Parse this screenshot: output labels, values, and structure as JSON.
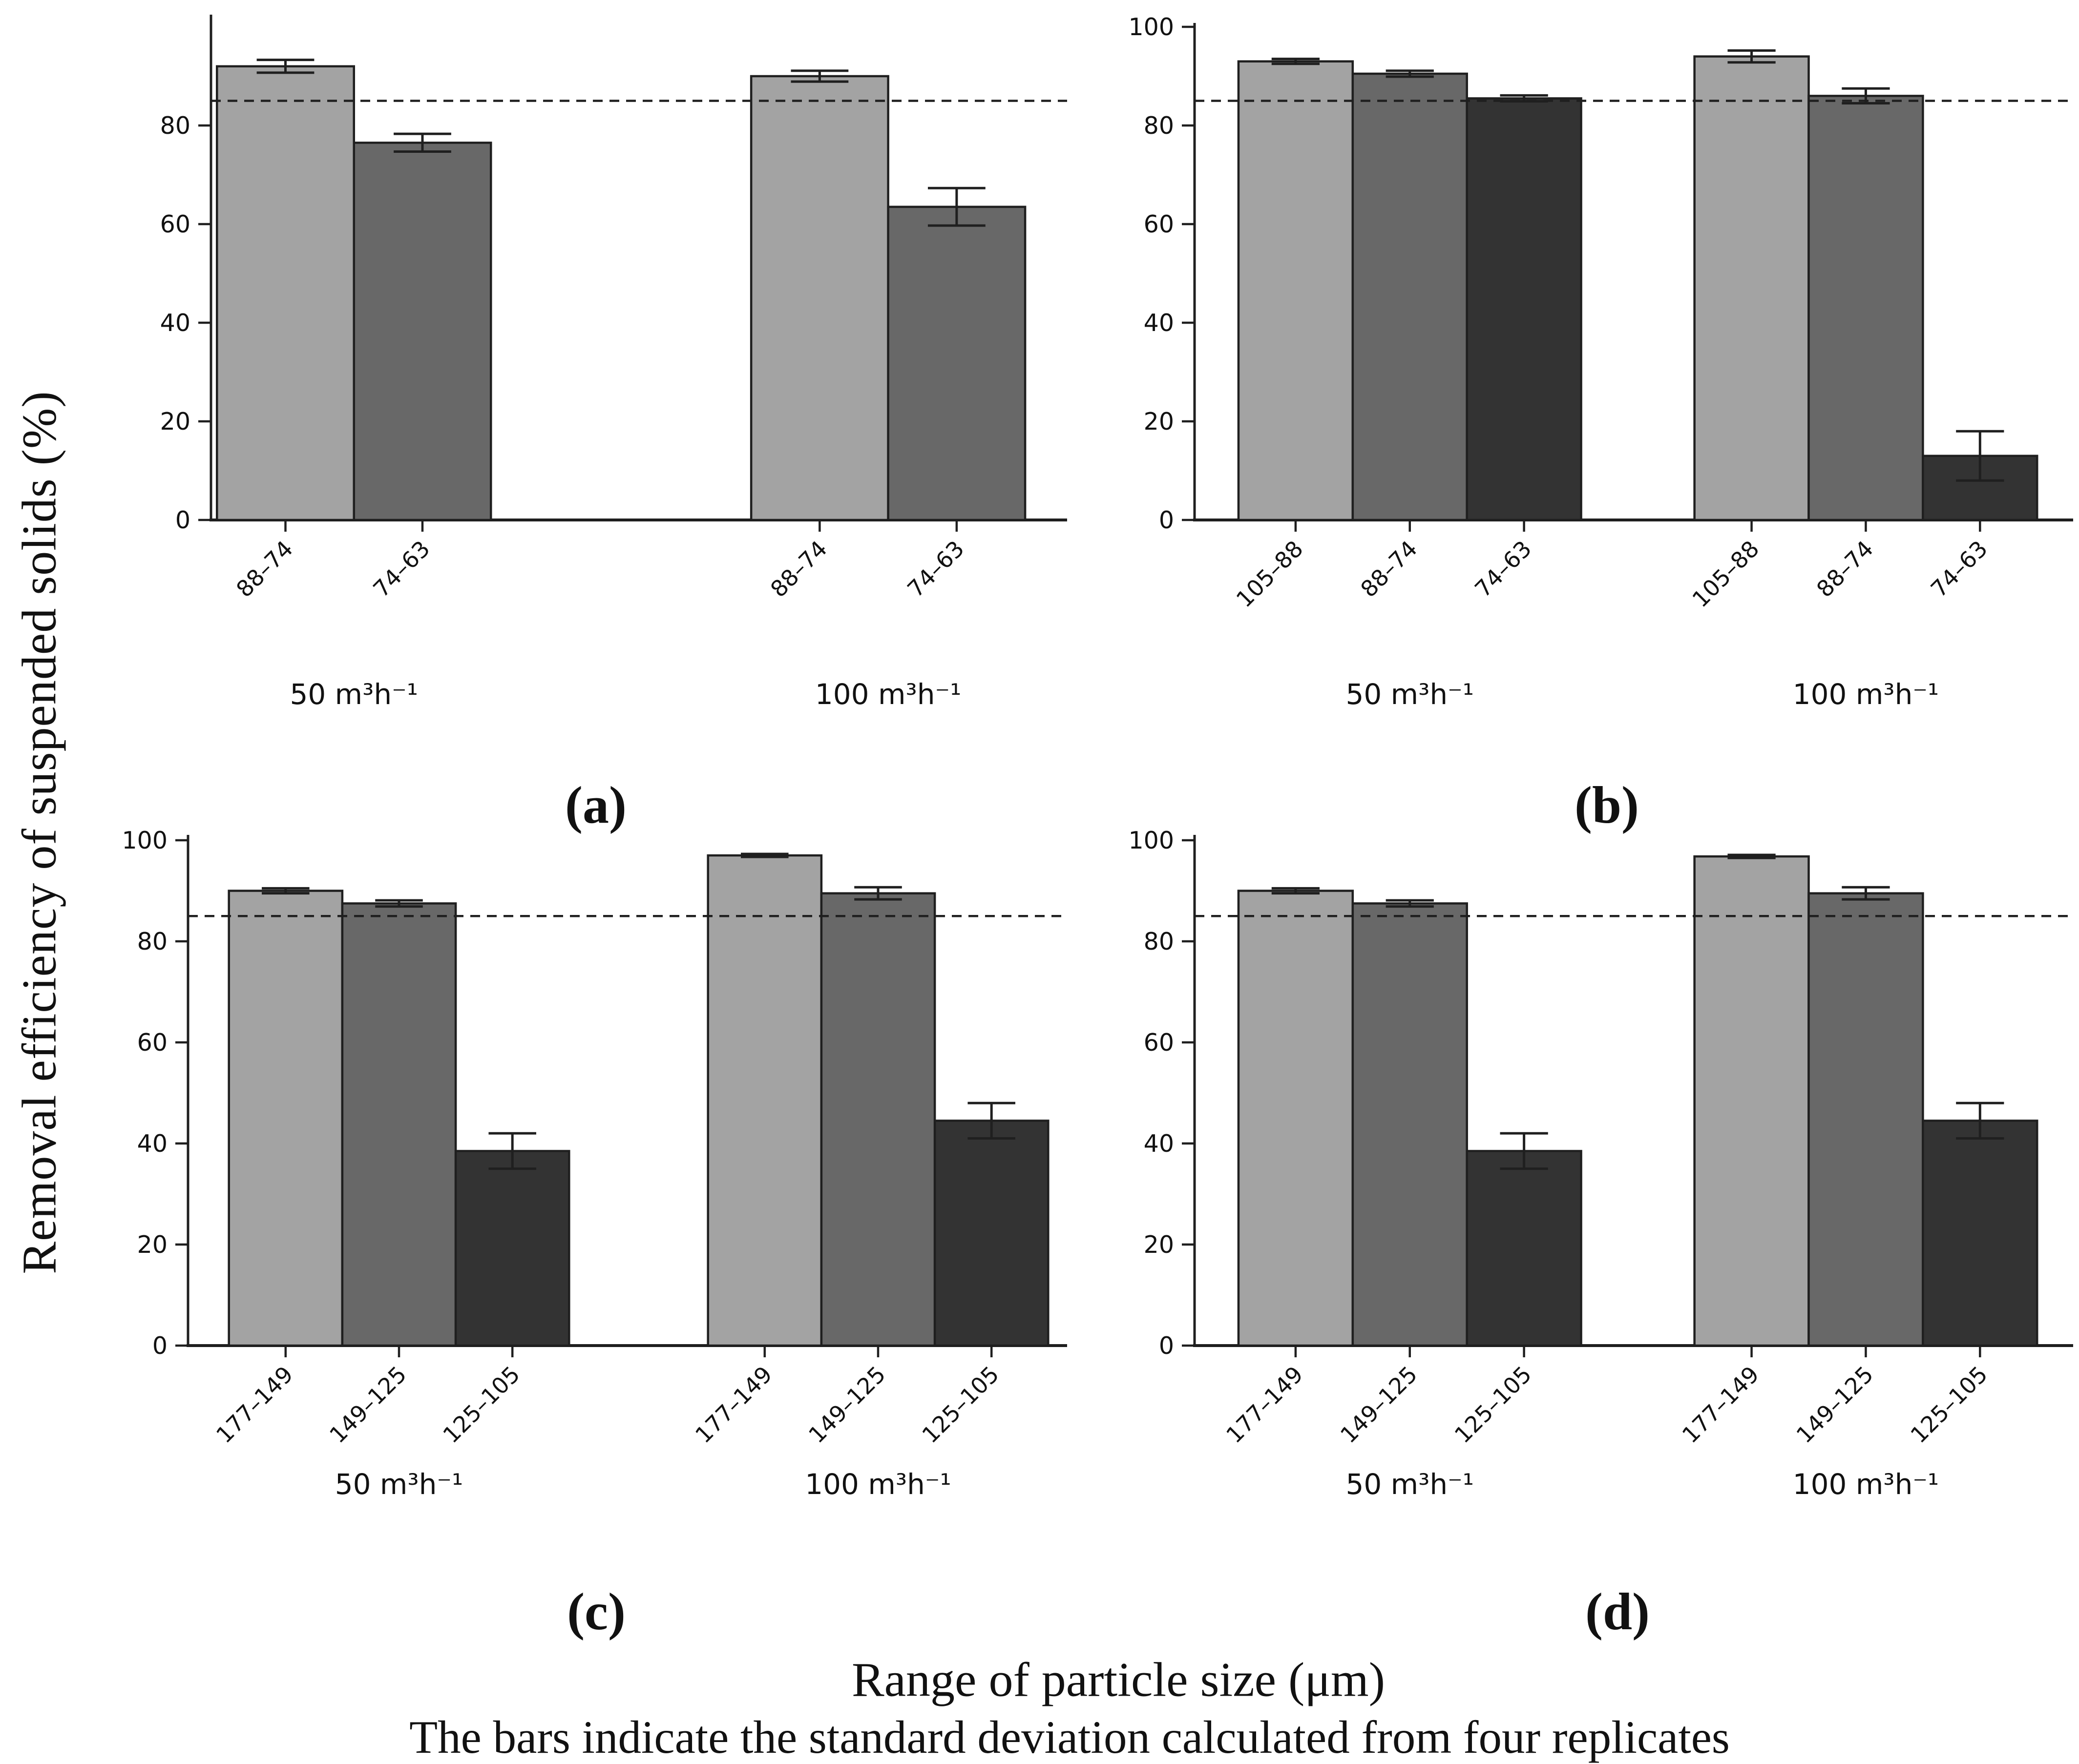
{
  "figure": {
    "y_axis_label": "Removal efficiency of suspended solids (%)",
    "x_axis_label": "Range of particle size (μm)",
    "footnote": "The bars indicate the standard deviation calculated from four replicates",
    "reference_line_value": 85,
    "bar_colors": [
      "#a3a3a3",
      "#686868",
      "#333333"
    ],
    "edge_color": "#1f1f1f",
    "background_color": "#ffffff"
  },
  "chart_data": [
    {
      "id": "a",
      "panel_label": "(a)",
      "type": "bar",
      "ylim": [
        0,
        100
      ],
      "yticks": [
        0,
        20,
        40,
        60,
        80
      ],
      "ref_line": 85,
      "grid": false,
      "groups": [
        {
          "label": "50 m³h⁻¹",
          "bars": [
            {
              "category": "88–74",
              "value": 92,
              "error": 1.3
            },
            {
              "category": "74–63",
              "value": 76.5,
              "error": 1.8
            }
          ]
        },
        {
          "label": "100 m³h⁻¹",
          "bars": [
            {
              "category": "88–74",
              "value": 90,
              "error": 1.1
            },
            {
              "category": "74–63",
              "value": 63.5,
              "error": 3.8
            }
          ]
        }
      ]
    },
    {
      "id": "b",
      "panel_label": "(b)",
      "type": "bar",
      "ylim": [
        0,
        100
      ],
      "yticks": [
        0,
        20,
        40,
        60,
        80,
        100
      ],
      "ref_line": 85,
      "grid": false,
      "groups": [
        {
          "label": "50 m³h⁻¹",
          "bars": [
            {
              "category": "105–88",
              "value": 93,
              "error": 0.5
            },
            {
              "category": "88–74",
              "value": 90.5,
              "error": 0.6
            },
            {
              "category": "74–63",
              "value": 85.5,
              "error": 0.6
            }
          ]
        },
        {
          "label": "100 m³h⁻¹",
          "bars": [
            {
              "category": "105–88",
              "value": 94,
              "error": 1.2
            },
            {
              "category": "88–74",
              "value": 86,
              "error": 1.5
            },
            {
              "category": "74–63",
              "value": 13,
              "error": 5
            }
          ]
        }
      ]
    },
    {
      "id": "c",
      "panel_label": "(c)",
      "type": "bar",
      "ylim": [
        0,
        100
      ],
      "yticks": [
        0,
        20,
        40,
        60,
        80,
        100
      ],
      "ref_line": 85,
      "grid": false,
      "groups": [
        {
          "label": "50 m³h⁻¹",
          "bars": [
            {
              "category": "177–149",
              "value": 90,
              "error": 0.5
            },
            {
              "category": "149–125",
              "value": 87.5,
              "error": 0.6
            },
            {
              "category": "125–105",
              "value": 38.5,
              "error": 3.5
            }
          ]
        },
        {
          "label": "100 m³h⁻¹",
          "bars": [
            {
              "category": "177–149",
              "value": 97,
              "error": 0.3
            },
            {
              "category": "149–125",
              "value": 89.5,
              "error": 1.2
            },
            {
              "category": "125–105",
              "value": 44.5,
              "error": 3.5
            }
          ]
        }
      ]
    },
    {
      "id": "d",
      "panel_label": "(d)",
      "type": "bar",
      "ylim": [
        0,
        100
      ],
      "yticks": [
        0,
        20,
        40,
        60,
        80,
        100
      ],
      "ref_line": 85,
      "grid": false,
      "groups": [
        {
          "label": "50 m³h⁻¹",
          "bars": [
            {
              "category": "177–149",
              "value": 90,
              "error": 0.5
            },
            {
              "category": "149–125",
              "value": 87.5,
              "error": 0.6
            },
            {
              "category": "125–105",
              "value": 38.5,
              "error": 3.5
            }
          ]
        },
        {
          "label": "100 m³h⁻¹",
          "bars": [
            {
              "category": "177–149",
              "value": 96.8,
              "error": 0.3
            },
            {
              "category": "149–125",
              "value": 89.5,
              "error": 1.2
            },
            {
              "category": "125–105",
              "value": 44.5,
              "error": 3.5
            }
          ]
        }
      ]
    }
  ]
}
